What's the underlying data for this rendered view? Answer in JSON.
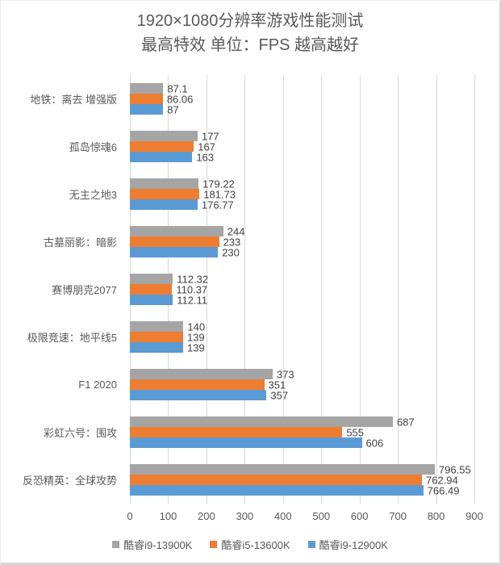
{
  "title": {
    "line1": "1920×1080分辨率游戏性能测试",
    "line2": "最高特效 单位：FPS 越高越好"
  },
  "chart_data": {
    "type": "bar",
    "orientation": "horizontal",
    "title": "1920×1080分辨率游戏性能测试",
    "subtitle": "最高特效 单位：FPS 越高越好",
    "unit": "FPS",
    "categories": [
      "地铁：离去 增强版",
      "孤岛惊魂6",
      "无主之地3",
      "古墓丽影：暗影",
      "赛博朋克2077",
      "极限竞速：地平线5",
      "F1 2020",
      "彩虹六号：围攻",
      "反恐精英：全球攻势"
    ],
    "series": [
      {
        "name": "酷睿i9-13900K",
        "color": "#A5A5A5",
        "values": [
          87.1,
          177,
          179.22,
          244,
          112.32,
          140,
          373,
          687,
          796.55
        ]
      },
      {
        "name": "酷睿i5-13600K",
        "color": "#ED7D31",
        "values": [
          86.06,
          167,
          181.73,
          233,
          110.37,
          139,
          351,
          555,
          762.94
        ]
      },
      {
        "name": "酷睿i9-12900K",
        "color": "#5B9BD5",
        "values": [
          87,
          163,
          176.77,
          230,
          112.11,
          139,
          357,
          606,
          766.49
        ]
      }
    ],
    "x_axis": {
      "min": 0,
      "max": 900,
      "tick_interval": 100,
      "ticks": [
        0,
        100,
        200,
        300,
        400,
        500,
        600,
        700,
        800,
        900
      ]
    },
    "grid": true,
    "value_labels_shown": true,
    "legend_position": "bottom",
    "colors": {
      "gridline": "#D9D9D9",
      "axis_text": "#595959",
      "value_label_text": "#404040",
      "title_text": "#595959"
    }
  }
}
